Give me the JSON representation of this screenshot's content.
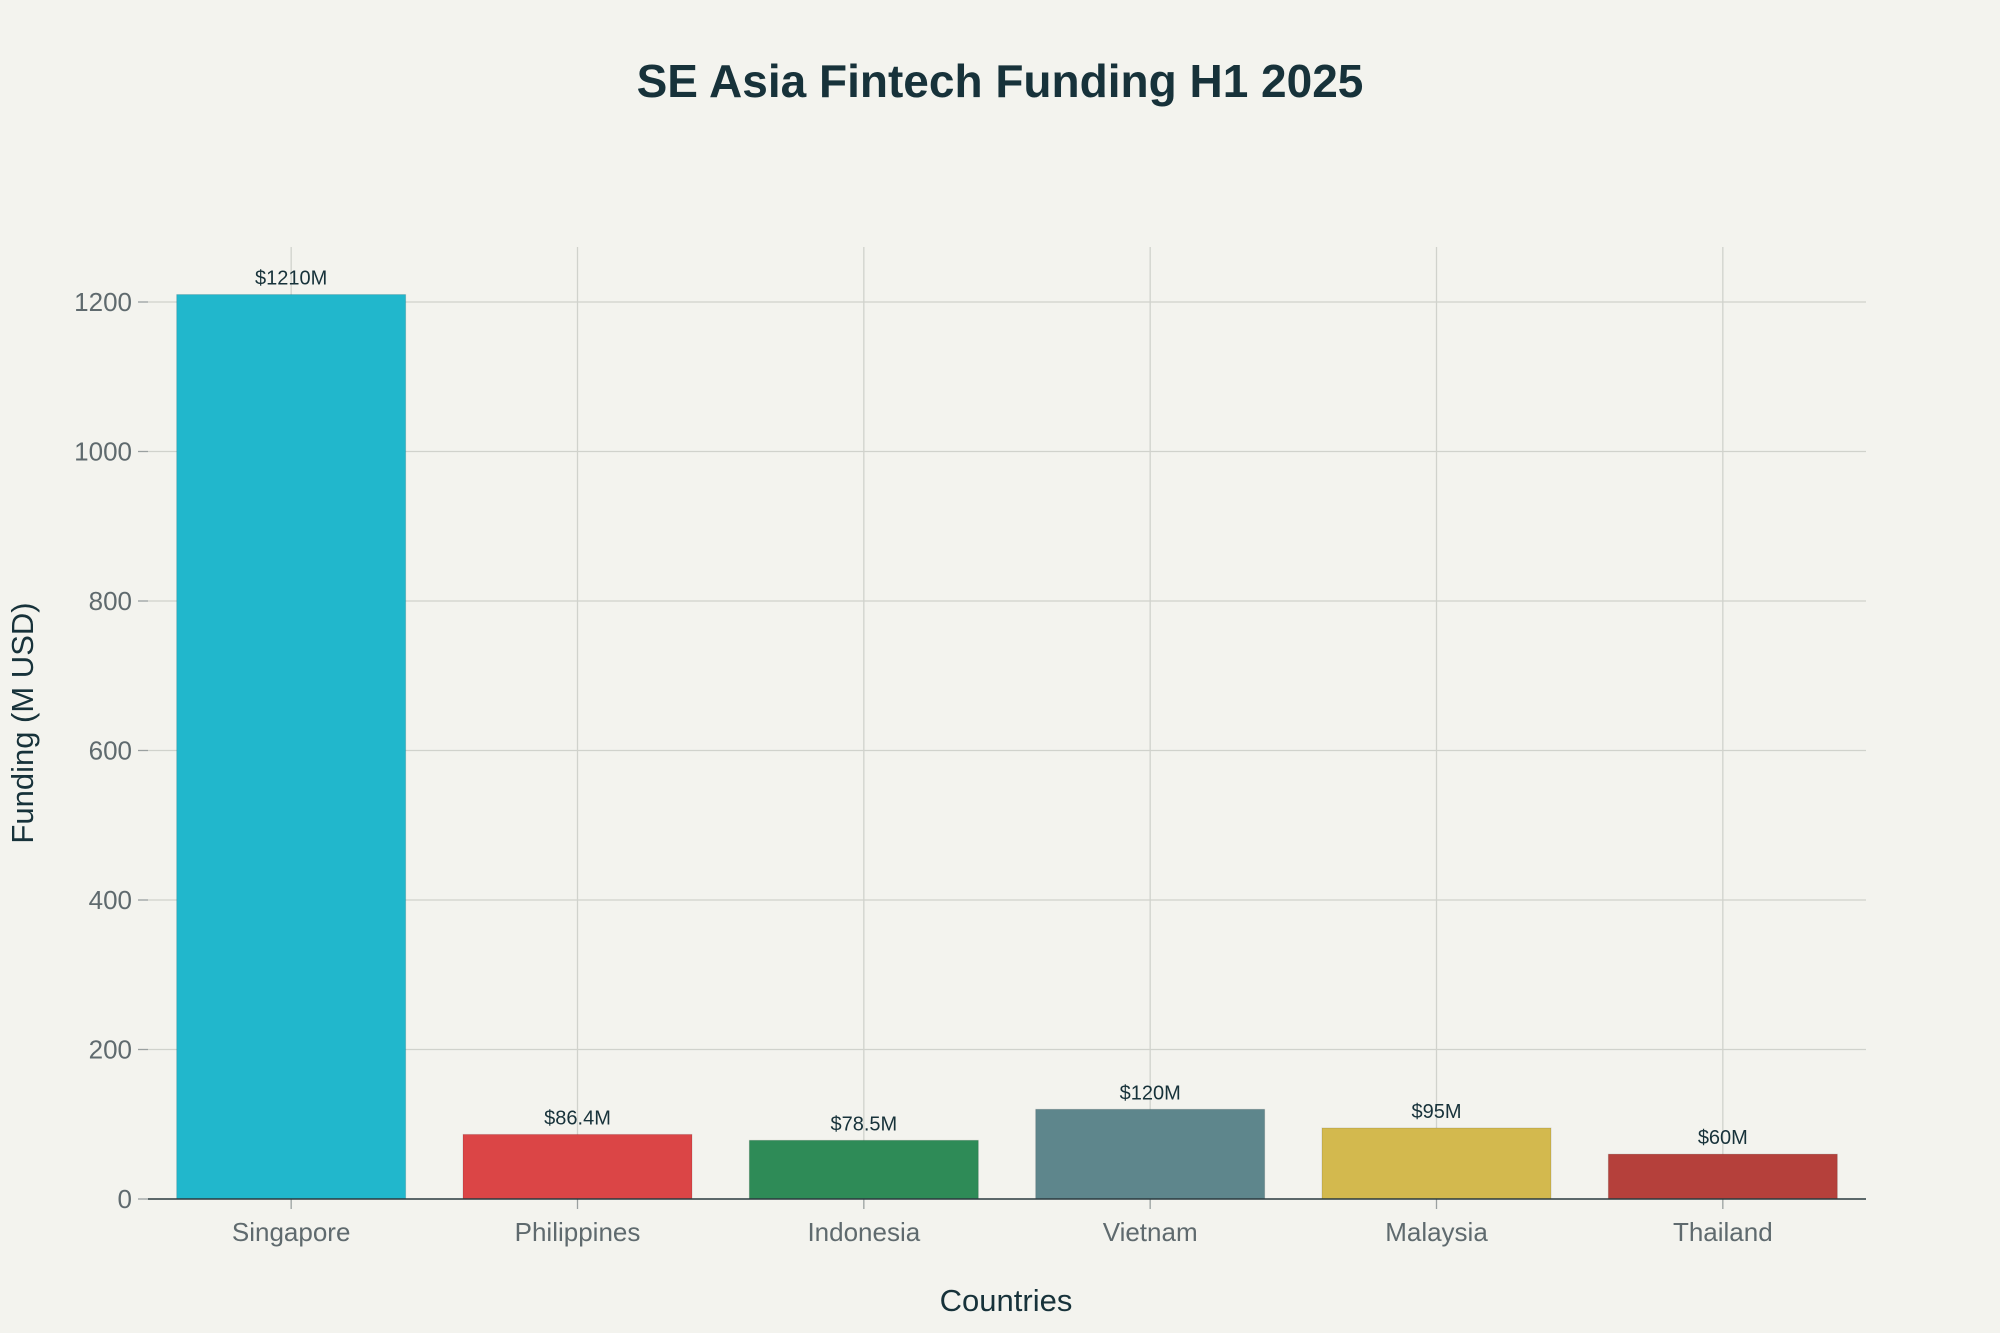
{
  "chart_data": {
    "type": "bar",
    "title": "SE Asia Fintech Funding H1 2025",
    "xlabel": "Countries",
    "ylabel": "Funding (M USD)",
    "categories": [
      "Singapore",
      "Philippines",
      "Indonesia",
      "Vietnam",
      "Malaysia",
      "Thailand"
    ],
    "values": [
      1210,
      86.4,
      78.5,
      120,
      95,
      60
    ],
    "data_labels": [
      "$1210M",
      "$86.4M",
      "$78.5M",
      "$120M",
      "$95M",
      "$60M"
    ],
    "colors": [
      "#21b7cc",
      "#db4546",
      "#2e8b57",
      "#5e868c",
      "#d3b94e",
      "#b5403b"
    ],
    "ylim": [
      0,
      1273
    ],
    "yticks": [
      0,
      200,
      400,
      600,
      800,
      1000,
      1200
    ],
    "grid": true,
    "legend": "none"
  }
}
